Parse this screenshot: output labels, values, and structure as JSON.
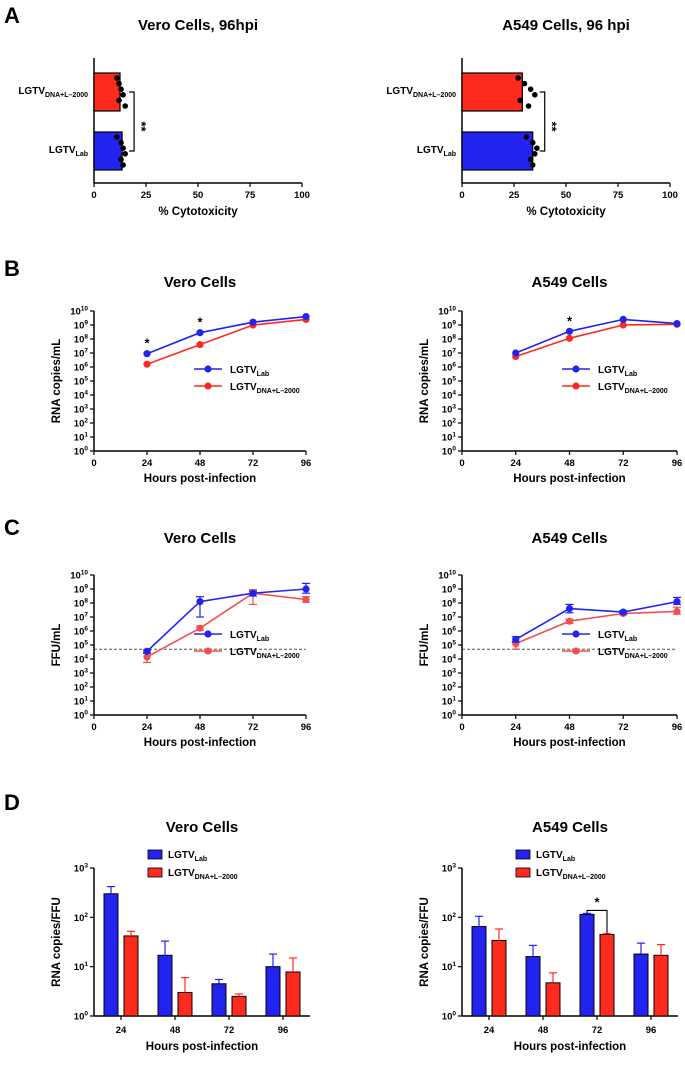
{
  "panel_labels": [
    "A",
    "B",
    "C",
    "D"
  ],
  "legend": {
    "lab_base": "LGTV",
    "lab_sub": "Lab",
    "dna_base": "LGTV",
    "dna_sub": "DNA+L–2000"
  },
  "colors": {
    "lab": "#2323f0",
    "dna": "#ff2a1e",
    "dna_light": "#f25050",
    "black": "#000000"
  },
  "chart_data": [
    {
      "panel": "A",
      "type": "bar",
      "orientation": "horizontal",
      "title": "Vero Cells, 96hpi",
      "xlabel": "% Cytotoxicity",
      "ylabel": "",
      "xlim": [
        0,
        100
      ],
      "xticks": [
        0,
        25,
        50,
        75,
        100
      ],
      "categories": [
        "LGTV DNA+L–2000",
        "LGTV Lab"
      ],
      "values": [
        12.5,
        13.5
      ],
      "points": [
        [
          11,
          12,
          13,
          14,
          12,
          15
        ],
        [
          11,
          13,
          14,
          15,
          13,
          14
        ]
      ],
      "significance": "**"
    },
    {
      "panel": "A",
      "type": "bar",
      "orientation": "horizontal",
      "title": "A549 Cells, 96 hpi",
      "xlabel": "% Cytotoxicity",
      "ylabel": "",
      "xlim": [
        0,
        100
      ],
      "xticks": [
        0,
        25,
        50,
        75,
        100
      ],
      "categories": [
        "LGTV DNA+L–2000",
        "LGTV Lab"
      ],
      "values": [
        29,
        34
      ],
      "points": [
        [
          27,
          30,
          33,
          35,
          28,
          32
        ],
        [
          31,
          34,
          36,
          35,
          33,
          34
        ]
      ],
      "significance": "**"
    },
    {
      "panel": "B",
      "type": "line",
      "title": "Vero Cells",
      "xlabel": "Hours post-infection",
      "ylabel": "RNA copies/mL",
      "x": [
        24,
        48,
        72,
        96
      ],
      "xlim": [
        0,
        96
      ],
      "ylim_log10": [
        0,
        10
      ],
      "series": [
        {
          "name": "LGTV Lab",
          "log10_values": [
            6.95,
            8.45,
            9.2,
            9.6
          ]
        },
        {
          "name": "LGTV DNA+L–2000",
          "log10_values": [
            6.2,
            7.6,
            9.0,
            9.4
          ]
        }
      ],
      "annotations": [
        {
          "x": 24,
          "text": "*"
        },
        {
          "x": 48,
          "text": "*"
        }
      ]
    },
    {
      "panel": "B",
      "type": "line",
      "title": "A549 Cells",
      "xlabel": "Hours post-infection",
      "ylabel": "RNA copies/mL",
      "x": [
        24,
        48,
        72,
        96
      ],
      "xlim": [
        0,
        96
      ],
      "ylim_log10": [
        0,
        10
      ],
      "series": [
        {
          "name": "LGTV Lab",
          "log10_values": [
            7.0,
            8.55,
            9.4,
            9.1
          ]
        },
        {
          "name": "LGTV DNA+L–2000",
          "log10_values": [
            6.75,
            8.05,
            9.0,
            9.05
          ]
        }
      ],
      "annotations": [
        {
          "x": 48,
          "text": "*"
        }
      ]
    },
    {
      "panel": "C",
      "type": "line",
      "title": "Vero Cells",
      "xlabel": "Hours post-infection",
      "ylabel": "FFU/mL",
      "x": [
        24,
        48,
        72,
        96
      ],
      "xlim": [
        0,
        96
      ],
      "ylim_log10": [
        0,
        10
      ],
      "detection_limit_log10": 4.7,
      "series": [
        {
          "name": "LGTV Lab",
          "log10_values": [
            4.55,
            8.1,
            8.7,
            9.0
          ],
          "log10_error_up": [
            0.1,
            0.35,
            0.15,
            0.4
          ],
          "log10_error_down": [
            0.1,
            1.1,
            0.2,
            0.3
          ]
        },
        {
          "name": "LGTV DNA+L–2000",
          "log10_values": [
            4.15,
            6.2,
            8.7,
            8.25
          ],
          "log10_error_up": [
            0.25,
            0.15,
            0.25,
            0.2
          ],
          "log10_error_down": [
            0.4,
            0.15,
            0.8,
            0.2
          ]
        }
      ]
    },
    {
      "panel": "C",
      "type": "line",
      "title": "A549 Cells",
      "xlabel": "Hours post-infection",
      "ylabel": "FFU/mL",
      "x": [
        24,
        48,
        72,
        96
      ],
      "xlim": [
        0,
        96
      ],
      "ylim_log10": [
        0,
        10
      ],
      "detection_limit_log10": 4.7,
      "series": [
        {
          "name": "LGTV Lab",
          "log10_values": [
            5.4,
            7.6,
            7.35,
            8.1
          ],
          "log10_error_up": [
            0.2,
            0.3,
            0.1,
            0.3
          ],
          "log10_error_down": [
            0.2,
            0.3,
            0.1,
            0.2
          ]
        },
        {
          "name": "LGTV DNA+L–2000",
          "log10_values": [
            5.1,
            6.7,
            7.25,
            7.4
          ],
          "log10_error_up": [
            0.15,
            0.15,
            0.1,
            0.3
          ],
          "log10_error_down": [
            0.4,
            0.15,
            0.1,
            0.2
          ]
        }
      ]
    },
    {
      "panel": "D",
      "type": "bar",
      "title": "Vero Cells",
      "xlabel": "Hours post-infection",
      "ylabel": "RNA copies/FFU",
      "categories": [
        "24",
        "48",
        "72",
        "96"
      ],
      "ylim_log10": [
        0,
        3
      ],
      "series": [
        {
          "name": "LGTV Lab",
          "values": [
            300,
            17,
            4.5,
            10
          ],
          "error_up": [
            420,
            33,
            5.5,
            18
          ]
        },
        {
          "name": "LGTV DNA+L–2000",
          "values": [
            42,
            3,
            2.5,
            7.8
          ],
          "error_up": [
            52,
            6,
            2.8,
            15
          ]
        }
      ],
      "annotations": []
    },
    {
      "panel": "D",
      "type": "bar",
      "title": "A549 Cells",
      "xlabel": "Hours post-infection",
      "ylabel": "RNA copies/FFU",
      "categories": [
        "24",
        "48",
        "72",
        "96"
      ],
      "ylim_log10": [
        0,
        3
      ],
      "series": [
        {
          "name": "LGTV Lab",
          "values": [
            65,
            16,
            115,
            18
          ],
          "error_up": [
            105,
            27,
            120,
            30
          ]
        },
        {
          "name": "LGTV DNA+L–2000",
          "values": [
            34,
            4.7,
            45,
            17
          ],
          "error_up": [
            58,
            7.5,
            47,
            28
          ]
        }
      ],
      "annotations": [
        {
          "category": "72",
          "text": "*"
        }
      ]
    }
  ]
}
